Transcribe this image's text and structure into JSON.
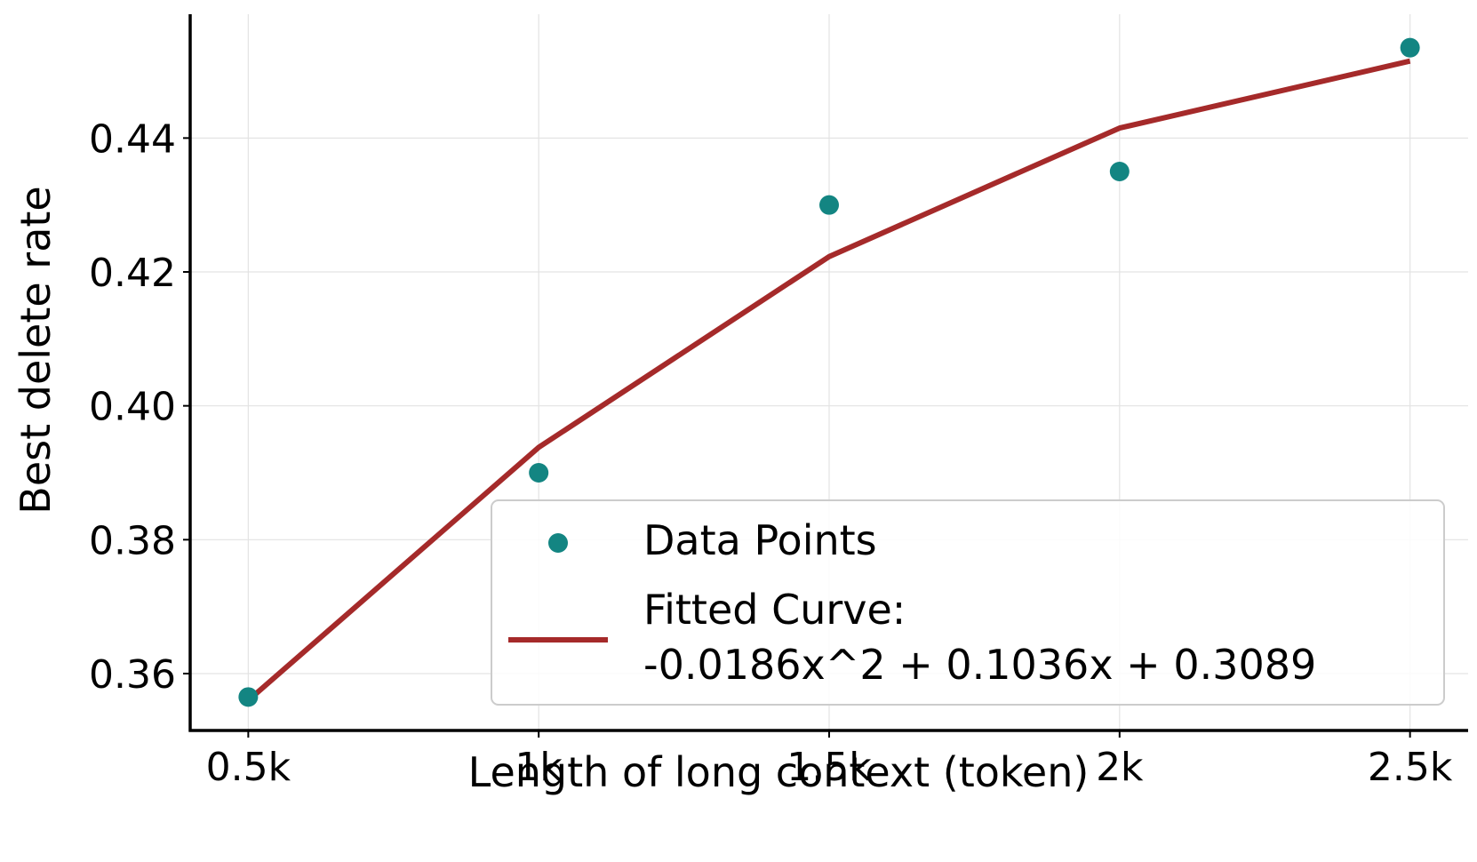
{
  "chart_data": {
    "type": "scatter",
    "xlabel": "Length of long context (token)",
    "ylabel": "Best delete rate",
    "x_ticks": [
      {
        "value": 0.5,
        "label": "0.5k"
      },
      {
        "value": 1.0,
        "label": "1k"
      },
      {
        "value": 1.5,
        "label": "1.5k"
      },
      {
        "value": 2.0,
        "label": "2k"
      },
      {
        "value": 2.5,
        "label": "2.5k"
      }
    ],
    "y_ticks": [
      {
        "value": 0.36,
        "label": "0.36"
      },
      {
        "value": 0.38,
        "label": "0.38"
      },
      {
        "value": 0.4,
        "label": "0.40"
      },
      {
        "value": 0.42,
        "label": "0.42"
      },
      {
        "value": 0.44,
        "label": "0.44"
      }
    ],
    "xlim": [
      0.4,
      2.6
    ],
    "ylim": [
      0.3515,
      0.4585
    ],
    "grid": true,
    "legend_position": "lower-right",
    "series": [
      {
        "name": "Data Points",
        "kind": "scatter",
        "color": "#138582",
        "x": [
          0.5,
          1.0,
          1.5,
          2.0,
          2.5
        ],
        "y": [
          0.3565,
          0.39,
          0.43,
          0.435,
          0.4535
        ]
      },
      {
        "name": "Fitted Curve:",
        "name_line2": "-0.0186x^2 + 0.1036x + 0.3089",
        "kind": "line",
        "color": "#A52A2A",
        "x": [
          0.5,
          1.0,
          1.5,
          2.0,
          2.5
        ],
        "y": [
          0.356,
          0.3938,
          0.4223,
          0.4415,
          0.4515
        ]
      }
    ]
  }
}
